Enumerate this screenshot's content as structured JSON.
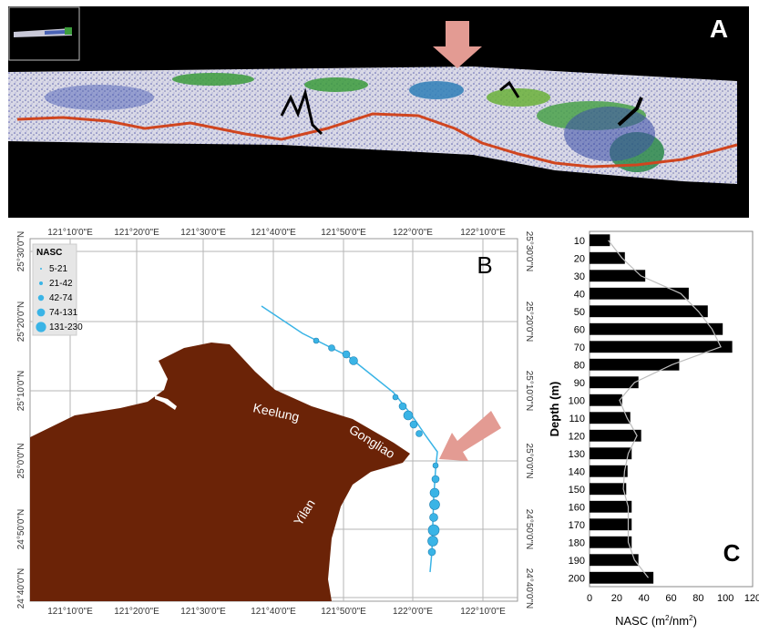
{
  "panels": {
    "a": {
      "letter": "A"
    },
    "b": {
      "letter": "B"
    },
    "c": {
      "letter": "C"
    }
  },
  "map": {
    "lon_ticks": [
      "121°10'0\"E",
      "121°20'0\"E",
      "121°30'0\"E",
      "121°40'0\"E",
      "121°50'0\"E",
      "122°0'0\"E",
      "122°10'0\"E"
    ],
    "lat_ticks": [
      "25°30'0\"N",
      "25°20'0\"N",
      "25°10'0\"N",
      "25°0'0\"N",
      "24°50'0\"N",
      "24°40'0\"N"
    ],
    "legend": {
      "title": "NASC",
      "classes": [
        {
          "label": "5-21"
        },
        {
          "label": "21-42"
        },
        {
          "label": "42-74"
        },
        {
          "label": "74-131"
        },
        {
          "label": "131-230"
        }
      ]
    },
    "place_labels": [
      "Keelung",
      "Gongliao",
      "Yilan"
    ],
    "colors": {
      "land": "#6b2307",
      "track": "#3ab4e6",
      "arrow": "#e39b93",
      "grid": "#b5b5b5"
    }
  },
  "chart_data": {
    "type": "bar",
    "orientation": "horizontal",
    "categories": [
      10,
      20,
      30,
      40,
      50,
      60,
      70,
      80,
      90,
      100,
      110,
      120,
      130,
      140,
      150,
      160,
      170,
      180,
      190,
      200
    ],
    "values": [
      15,
      26,
      41,
      73,
      87,
      98,
      105,
      66,
      36,
      24,
      30,
      38,
      31,
      28,
      27,
      31,
      31,
      31,
      36,
      47
    ],
    "xlabel_base": "NASC (m",
    "xlabel_sup1": "2",
    "xlabel_mid": "/nm",
    "xlabel_sup2": "2",
    "xlabel_end": ")",
    "ylabel": "Depth (m)",
    "xticks": [
      0,
      20,
      40,
      60,
      80,
      100,
      120
    ],
    "xlim": [
      0,
      120
    ],
    "bar_color": "#000000",
    "trend_color": "#bdbdbd"
  }
}
